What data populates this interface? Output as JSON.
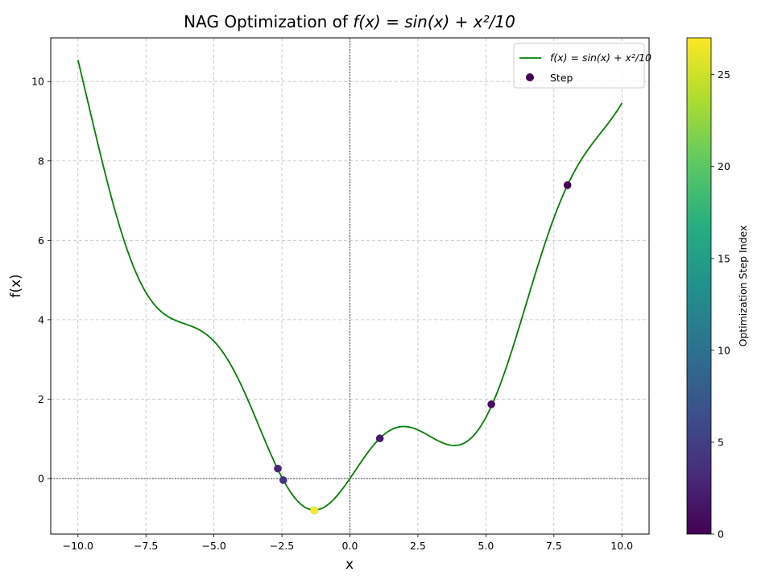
{
  "chart_data": {
    "type": "line",
    "title_prefix": "NAG Optimization of ",
    "title_math": "f(x) = sin(x) + x²/10",
    "xlabel": "x",
    "ylabel": "f(x)",
    "xlim": [
      -11,
      11
    ],
    "ylim": [
      -1.4,
      11.1
    ],
    "xticks": [
      -10.0,
      -7.5,
      -5.0,
      -2.5,
      0.0,
      2.5,
      5.0,
      7.5,
      10.0
    ],
    "xtick_labels": [
      "−10.0",
      "−7.5",
      "−5.0",
      "−2.5",
      "0.0",
      "2.5",
      "5.0",
      "7.5",
      "10.0"
    ],
    "yticks": [
      0,
      2,
      4,
      6,
      8,
      10
    ],
    "ytick_labels": [
      "0",
      "2",
      "4",
      "6",
      "8",
      "10"
    ],
    "grid": true,
    "reference_lines": {
      "x": 0,
      "y": 0
    },
    "curve": {
      "function": "sin(x) + x^2/10",
      "x_range": [
        -10,
        10
      ],
      "color": "#008000",
      "legend_label": "f(x) = sin(x) + x²/10"
    },
    "steps": {
      "legend_label": "Step",
      "colormap": "viridis",
      "points": [
        {
          "x": 8.0,
          "y": 7.39,
          "index": 0
        },
        {
          "x": 5.2,
          "y": 1.87,
          "index": 1
        },
        {
          "x": 1.1,
          "y": 1.01,
          "index": 2
        },
        {
          "x": -2.65,
          "y": 0.25,
          "index": 3
        },
        {
          "x": -2.45,
          "y": -0.04,
          "index": 4
        },
        {
          "x": -1.31,
          "y": -0.8,
          "index": 10
        },
        {
          "x": -1.31,
          "y": -0.8,
          "index": 18
        },
        {
          "x": -1.31,
          "y": -0.8,
          "index": 27
        }
      ]
    },
    "colorbar": {
      "label": "Optimization Step Index",
      "range": [
        0,
        27
      ],
      "ticks": [
        0,
        5,
        10,
        15,
        20,
        25
      ],
      "tick_labels": [
        "0",
        "5",
        "10",
        "15",
        "20",
        "25"
      ]
    },
    "legend_position": "top-right"
  }
}
